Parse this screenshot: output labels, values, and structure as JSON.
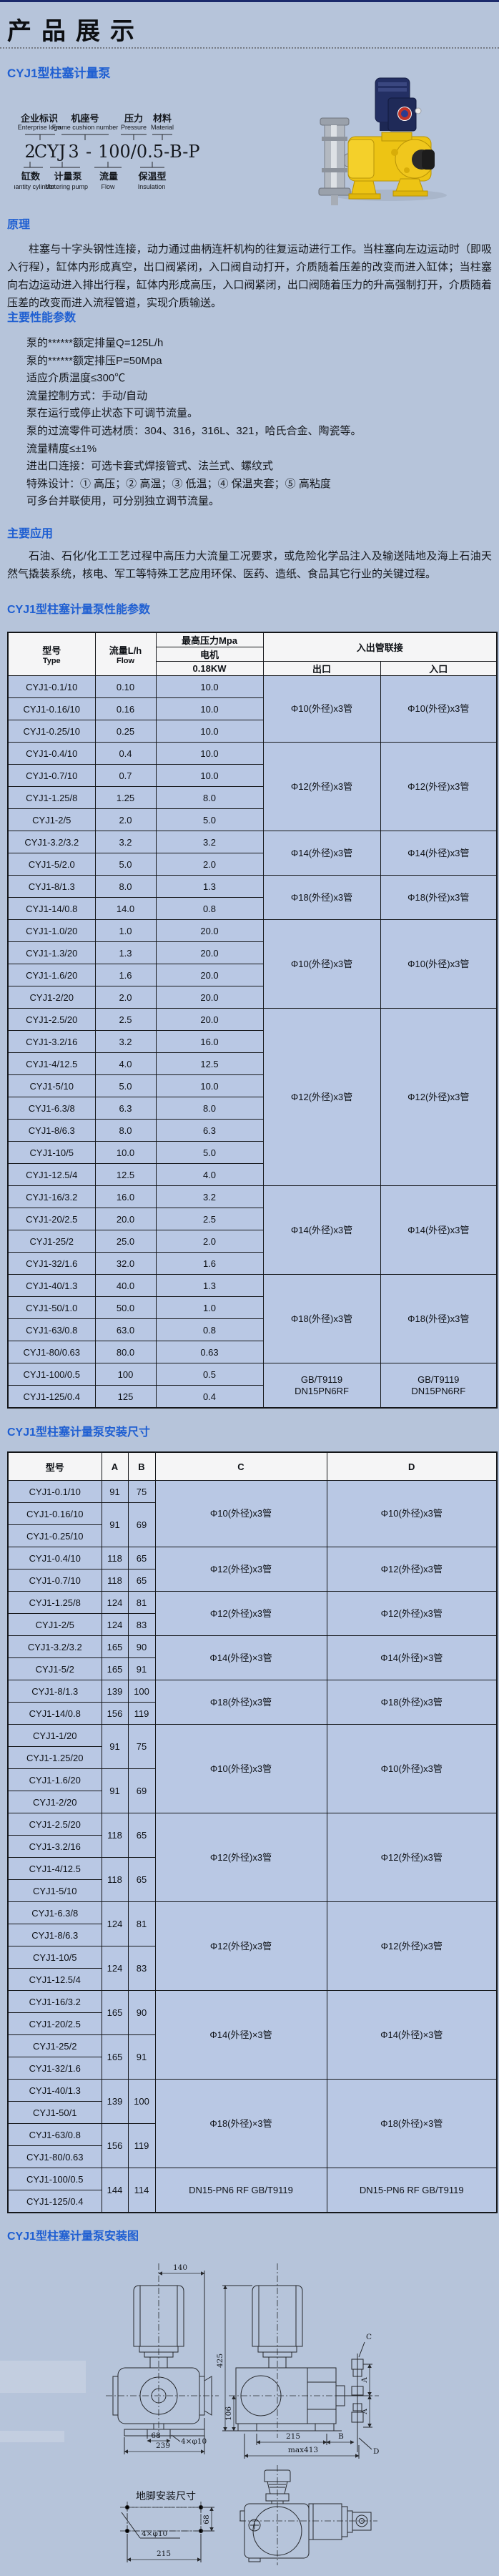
{
  "page": {
    "header_title": "产品展示",
    "product_title": "CYJ1型柱塞计量泵"
  },
  "model_code": {
    "top_labels": [
      {
        "zh": "企业标识",
        "en": "Enterprise logo"
      },
      {
        "zh": "机座号",
        "en": "Frame cushion number"
      },
      {
        "zh": "压力",
        "en": "Pressure"
      },
      {
        "zh": "材料",
        "en": "Material"
      }
    ],
    "parts": [
      "2",
      "CY",
      "J",
      "3",
      "-",
      "100/0.5-B-P"
    ],
    "bottom_labels": [
      {
        "zh": "缸数",
        "en": "Quantity cylinder"
      },
      {
        "zh": "计量泵",
        "en": "Metering pump"
      },
      {
        "zh": "流量",
        "en": "Flow"
      },
      {
        "zh": "保温型",
        "en": "Insulation"
      }
    ]
  },
  "sections": {
    "principle": {
      "heading": "原理",
      "text": "柱塞与十字头钢性连接，动力通过曲柄连杆机构的往复运动进行工作。当柱塞向左边运动时（即吸入行程），缸体内形成真空，出口阀紧闭，入口阀自动打开，介质随着压差的改变而进入缸体；当柱塞向右边运动进入排出行程，缸体内形成高压，入口阀紧闭，出口阀随着压力的升高强制打开，介质随着压差的改变而进入流程管道，实现介质输送。"
    },
    "performance": {
      "heading": "主要性能参数",
      "items": [
        "泵的******额定排量Q=125L/h",
        "泵的******额定排压P=50Mpa",
        "适应介质温度≤300℃",
        "流量控制方式：手动/自动",
        "泵在运行或停止状态下可调节流量。",
        "泵的过流零件可选材质：304、316，316L、321，哈氏合金、陶瓷等。",
        "流量精度≤±1%",
        "进出口连接：可选卡套式焊接管式、法兰式、螺纹式",
        "特殊设计：① 高压；② 高温；③ 低温；④ 保温夹套；⑤ 高粘度",
        "可多台并联使用，可分别独立调节流量。"
      ]
    },
    "application": {
      "heading": "主要应用",
      "text": "石油、石化/化工工艺过程中高压力大流量工况要求，或危险化学品注入及输送陆地及海上石油天然气撬装系统，核电、军工等特殊工艺应用环保、医药、造纸、食品其它行业的关键过程。"
    },
    "table1_heading": "CYJ1型柱塞计量泵性能参数",
    "table2_heading": "CYJ1型柱塞计量泵安装尺寸",
    "diagram_heading": "CYJ1型柱塞计量泵安装图"
  },
  "table1": {
    "headers": {
      "model_zh": "型号",
      "model_en": "Type",
      "flow_zh": "流量L/h",
      "flow_en": "Flow",
      "pressure": "最高压力Mpa",
      "motor": "电机",
      "power": "0.18KW",
      "pipe": "入出管联接",
      "outlet": "出口",
      "inlet": "入口"
    },
    "rows": [
      {
        "model": "CYJ1-0.1/10",
        "flow": "0.10",
        "pressure": "10.0",
        "pipe": {
          "span": 3,
          "outlet": "Φ10(外径)x3管",
          "inlet": "Φ10(外径)x3管"
        }
      },
      {
        "model": "CYJ1-0.16/10",
        "flow": "0.16",
        "pressure": "10.0"
      },
      {
        "model": "CYJ1-0.25/10",
        "flow": "0.25",
        "pressure": "10.0"
      },
      {
        "model": "CYJ1-0.4/10",
        "flow": "0.4",
        "pressure": "10.0",
        "pipe": {
          "span": 4,
          "outlet": "Φ12(外径)x3管",
          "inlet": "Φ12(外径)x3管"
        }
      },
      {
        "model": "CYJ1-0.7/10",
        "flow": "0.7",
        "pressure": "10.0"
      },
      {
        "model": "CYJ1-1.25/8",
        "flow": "1.25",
        "pressure": "8.0"
      },
      {
        "model": "CYJ1-2/5",
        "flow": "2.0",
        "pressure": "5.0"
      },
      {
        "model": "CYJ1-3.2/3.2",
        "flow": "3.2",
        "pressure": "3.2",
        "pipe": {
          "span": 2,
          "outlet": "Φ14(外径)x3管",
          "inlet": "Φ14(外径)x3管"
        }
      },
      {
        "model": "CYJ1-5/2.0",
        "flow": "5.0",
        "pressure": "2.0"
      },
      {
        "model": "CYJ1-8/1.3",
        "flow": "8.0",
        "pressure": "1.3",
        "pipe": {
          "span": 2,
          "outlet": "Φ18(外径)x3管",
          "inlet": "Φ18(外径)x3管"
        }
      },
      {
        "model": "CYJ1-14/0.8",
        "flow": "14.0",
        "pressure": "0.8"
      },
      {
        "model": "CYJ1-1.0/20",
        "flow": "1.0",
        "pressure": "20.0",
        "pipe": {
          "span": 4,
          "outlet": "Φ10(外径)x3管",
          "inlet": "Φ10(外径)x3管"
        }
      },
      {
        "model": "CYJ1-1.3/20",
        "flow": "1.3",
        "pressure": "20.0"
      },
      {
        "model": "CYJ1-1.6/20",
        "flow": "1.6",
        "pressure": "20.0"
      },
      {
        "model": "CYJ1-2/20",
        "flow": "2.0",
        "pressure": "20.0"
      },
      {
        "model": "CYJ1-2.5/20",
        "flow": "2.5",
        "pressure": "20.0",
        "pipe": {
          "span": 8,
          "outlet": "Φ12(外径)x3管",
          "inlet": "Φ12(外径)x3管"
        }
      },
      {
        "model": "CYJ1-3.2/16",
        "flow": "3.2",
        "pressure": "16.0"
      },
      {
        "model": "CYJ1-4/12.5",
        "flow": "4.0",
        "pressure": "12.5"
      },
      {
        "model": "CYJ1-5/10",
        "flow": "5.0",
        "pressure": "10.0"
      },
      {
        "model": "CYJ1-6.3/8",
        "flow": "6.3",
        "pressure": "8.0"
      },
      {
        "model": "CYJ1-8/6.3",
        "flow": "8.0",
        "pressure": "6.3"
      },
      {
        "model": "CYJ1-10/5",
        "flow": "10.0",
        "pressure": "5.0"
      },
      {
        "model": "CYJ1-12.5/4",
        "flow": "12.5",
        "pressure": "4.0"
      },
      {
        "model": "CYJ1-16/3.2",
        "flow": "16.0",
        "pressure": "3.2",
        "pipe": {
          "span": 4,
          "outlet": "Φ14(外径)x3管",
          "inlet": "Φ14(外径)x3管"
        }
      },
      {
        "model": "CYJ1-20/2.5",
        "flow": "20.0",
        "pressure": "2.5"
      },
      {
        "model": "CYJ1-25/2",
        "flow": "25.0",
        "pressure": "2.0"
      },
      {
        "model": "CYJ1-32/1.6",
        "flow": "32.0",
        "pressure": "1.6"
      },
      {
        "model": "CYJ1-40/1.3",
        "flow": "40.0",
        "pressure": "1.3",
        "pipe": {
          "span": 4,
          "outlet": "Φ18(外径)x3管",
          "inlet": "Φ18(外径)x3管"
        }
      },
      {
        "model": "CYJ1-50/1.0",
        "flow": "50.0",
        "pressure": "1.0"
      },
      {
        "model": "CYJ1-63/0.8",
        "flow": "63.0",
        "pressure": "0.8"
      },
      {
        "model": "CYJ1-80/0.63",
        "flow": "80.0",
        "pressure": "0.63"
      },
      {
        "model": "CYJ1-100/0.5",
        "flow": "100",
        "pressure": "0.5",
        "pipe": {
          "span": 2,
          "outlet": "GB/T9119\nDN15PN6RF",
          "inlet": "GB/T9119\nDN15PN6RF"
        }
      },
      {
        "model": "CYJ1-125/0.4",
        "flow": "125",
        "pressure": "0.4"
      }
    ]
  },
  "table2": {
    "headers": [
      "型号",
      "A",
      "B",
      "C",
      "D"
    ],
    "rows": [
      {
        "model": "CYJ1-0.1/10",
        "ab": {
          "span": 1,
          "a": "91",
          "b": "75"
        },
        "cd": {
          "span": 3,
          "c": "Φ10(外径)x3管",
          "d": "Φ10(外径)x3管"
        }
      },
      {
        "model": "CYJ1-0.16/10",
        "ab": {
          "span": 2,
          "a": "91",
          "b": "69"
        }
      },
      {
        "model": "CYJ1-0.25/10"
      },
      {
        "model": "CYJ1-0.4/10",
        "ab": {
          "span": 1,
          "a": "118",
          "b": "65"
        },
        "cd": {
          "span": 2,
          "c": "Φ12(外径)x3管",
          "d": "Φ12(外径)x3管"
        }
      },
      {
        "model": "CYJ1-0.7/10",
        "ab": {
          "span": 1,
          "a": "118",
          "b": "65"
        }
      },
      {
        "model": "CYJ1-1.25/8",
        "ab": {
          "span": 1,
          "a": "124",
          "b": "81"
        },
        "cd": {
          "span": 2,
          "c": "Φ12(外径)x3管",
          "d": "Φ12(外径)x3管"
        }
      },
      {
        "model": "CYJ1-2/5",
        "ab": {
          "span": 1,
          "a": "124",
          "b": "83"
        }
      },
      {
        "model": "CYJ1-3.2/3.2",
        "ab": {
          "span": 1,
          "a": "165",
          "b": "90"
        },
        "cd": {
          "span": 2,
          "c": "Φ14(外径)×3管",
          "d": "Φ14(外径)×3管"
        }
      },
      {
        "model": "CYJ1-5/2",
        "ab": {
          "span": 1,
          "a": "165",
          "b": "91"
        }
      },
      {
        "model": "CYJ1-8/1.3",
        "ab": {
          "span": 1,
          "a": "139",
          "b": "100"
        },
        "cd": {
          "span": 2,
          "c": "Φ18(外径)x3管",
          "d": "Φ18(外径)x3管"
        }
      },
      {
        "model": "CYJ1-14/0.8",
        "ab": {
          "span": 1,
          "a": "156",
          "b": "119"
        }
      },
      {
        "model": "CYJ1-1/20",
        "ab": {
          "span": 2,
          "a": "91",
          "b": "75"
        },
        "cd": {
          "span": 4,
          "c": "Φ10(外径)x3管",
          "d": "Φ10(外径)x3管"
        }
      },
      {
        "model": "CYJ1-1.25/20"
      },
      {
        "model": "CYJ1-1.6/20",
        "ab": {
          "span": 2,
          "a": "91",
          "b": "69"
        }
      },
      {
        "model": "CYJ1-2/20"
      },
      {
        "model": "CYJ1-2.5/20",
        "ab": {
          "span": 2,
          "a": "118",
          "b": "65"
        },
        "cd": {
          "span": 4,
          "c": "Φ12(外径)x3管",
          "d": "Φ12(外径)x3管"
        }
      },
      {
        "model": "CYJ1-3.2/16"
      },
      {
        "model": "CYJ1-4/12.5",
        "ab": {
          "span": 2,
          "a": "118",
          "b": "65"
        }
      },
      {
        "model": "CYJ1-5/10"
      },
      {
        "model": "CYJ1-6.3/8",
        "ab": {
          "span": 2,
          "a": "124",
          "b": "81"
        },
        "cd": {
          "span": 4,
          "c": "Φ12(外径)x3管",
          "d": "Φ12(外径)x3管"
        }
      },
      {
        "model": "CYJ1-8/6.3"
      },
      {
        "model": "CYJ1-10/5",
        "ab": {
          "span": 2,
          "a": "124",
          "b": "83"
        }
      },
      {
        "model": "CYJ1-12.5/4"
      },
      {
        "model": "CYJ1-16/3.2",
        "ab": {
          "span": 2,
          "a": "165",
          "b": "90"
        },
        "cd": {
          "span": 4,
          "c": "Φ14(外径)×3管",
          "d": "Φ14(外径)×3管"
        }
      },
      {
        "model": "CYJ1-20/2.5"
      },
      {
        "model": "CYJ1-25/2",
        "ab": {
          "span": 2,
          "a": "165",
          "b": "91"
        }
      },
      {
        "model": "CYJ1-32/1.6"
      },
      {
        "model": "CYJ1-40/1.3",
        "ab": {
          "span": 2,
          "a": "139",
          "b": "100"
        },
        "cd": {
          "span": 4,
          "c": "Φ18(外径)×3管",
          "d": "Φ18(外径)×3管"
        }
      },
      {
        "model": "CYJ1-50/1"
      },
      {
        "model": "CYJ1-63/0.8",
        "ab": {
          "span": 2,
          "a": "156",
          "b": "119"
        }
      },
      {
        "model": "CYJ1-80/0.63"
      },
      {
        "model": "CYJ1-100/0.5",
        "ab": {
          "span": 2,
          "a": "144",
          "b": "114"
        },
        "cd": {
          "span": 2,
          "c": "DN15-PN6 RF GB/T9119",
          "d": "DN15-PN6 RF GB/T9119"
        }
      },
      {
        "model": "CYJ1-125/0.4"
      }
    ]
  },
  "drawing": {
    "dim140": "140",
    "dim68": "68",
    "bolt": "4×φ10",
    "dim239": "239",
    "dim425": "425",
    "dim106": "106",
    "dim215": "215",
    "labelB": "B",
    "max413": "max413",
    "labelC": "C",
    "labelA": "A",
    "labelD": "D",
    "foot_title": "地脚安装尺寸",
    "foot68": "68",
    "foot_bolt": "4×φ10",
    "foot215": "215"
  }
}
